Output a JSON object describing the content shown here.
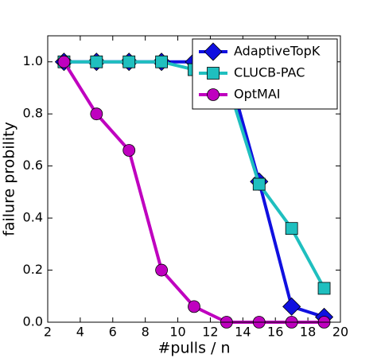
{
  "chart_data": {
    "type": "line",
    "x_label": "#pulls / n",
    "y_label": "failure probility",
    "x": [
      3,
      5,
      7,
      9,
      11,
      13,
      15,
      17,
      19
    ],
    "series": [
      {
        "name": "AdaptiveTopK",
        "color": "#1010e0",
        "marker": "diamond",
        "values": [
          1.0,
          1.0,
          1.0,
          1.0,
          1.0,
          0.99,
          0.54,
          0.06,
          0.02
        ]
      },
      {
        "name": "CLUCB-PAC",
        "color": "#1fbfbf",
        "marker": "square",
        "values": [
          1.0,
          1.0,
          1.0,
          1.0,
          0.97,
          0.93,
          0.53,
          0.36,
          0.13
        ]
      },
      {
        "name": "OptMAI",
        "color": "#bf00bf",
        "marker": "circle",
        "values": [
          1.0,
          0.8,
          0.66,
          0.2,
          0.06,
          0.0,
          0.0,
          0.0,
          0.0
        ]
      }
    ],
    "xlim": [
      2,
      20
    ],
    "xticks": [
      2,
      4,
      6,
      8,
      10,
      12,
      14,
      16,
      18,
      20
    ],
    "ylim": [
      0,
      1.1
    ],
    "yticks": [
      {
        "value": 0,
        "label": "0.0"
      },
      {
        "value": 0.2,
        "label": "0.2"
      },
      {
        "value": 0.4,
        "label": "0.4"
      },
      {
        "value": 0.6,
        "label": "0.6"
      },
      {
        "value": 0.8,
        "label": "0.8"
      },
      {
        "value": 1.0,
        "label": "1.0"
      }
    ],
    "legend": "upper right",
    "grid": false
  }
}
